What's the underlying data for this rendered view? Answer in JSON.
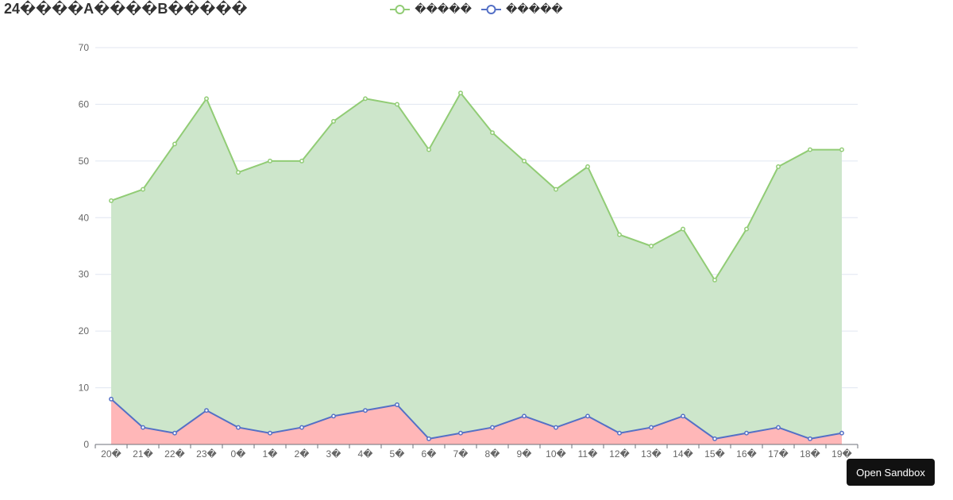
{
  "chart_data": {
    "type": "area",
    "title": "24����A����B�����",
    "xlabel": "",
    "ylabel": "",
    "categories": [
      "20�",
      "21�",
      "22�",
      "23�",
      "0�",
      "1�",
      "2�",
      "3�",
      "4�",
      "5�",
      "6�",
      "7�",
      "8�",
      "9�",
      "10�",
      "11�",
      "12�",
      "13�",
      "14�",
      "15�",
      "16�",
      "17�",
      "18�",
      "19�"
    ],
    "ylim": [
      0,
      70
    ],
    "yticks": [
      0,
      10,
      20,
      30,
      40,
      50,
      60,
      70
    ],
    "grid": true,
    "legend_position": "top-center",
    "series": [
      {
        "name": "�����",
        "color": "#91cc75",
        "area_color": "#cde6cb",
        "values": [
          43,
          45,
          53,
          61,
          48,
          50,
          50,
          57,
          61,
          60,
          52,
          62,
          55,
          50,
          45,
          49,
          37,
          35,
          38,
          29,
          38,
          49,
          52,
          52
        ]
      },
      {
        "name": "�����",
        "color": "#5470c6",
        "area_color": "#ffb7b8",
        "values": [
          8,
          3,
          2,
          6,
          3,
          2,
          3,
          5,
          6,
          7,
          1,
          2,
          3,
          5,
          3,
          5,
          2,
          3,
          5,
          1,
          2,
          3,
          1,
          2
        ]
      }
    ]
  },
  "sandbox_button": {
    "label": "Open Sandbox"
  }
}
